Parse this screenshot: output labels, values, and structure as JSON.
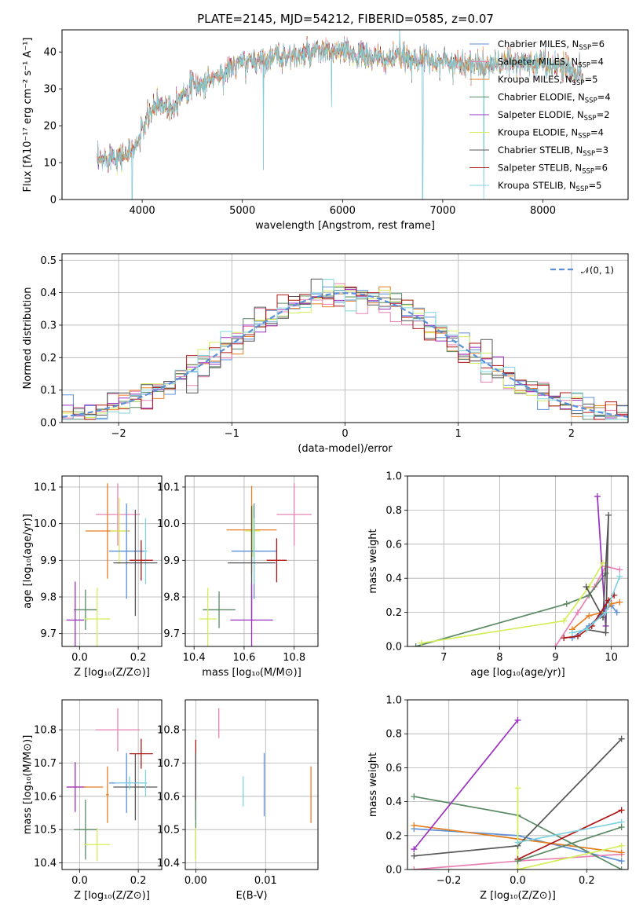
{
  "figure_title": "PLATE=2145, MJD=54212, FIBERID=0585, z=0.07",
  "colors": {
    "chabrier_miles": "#5b8fd8",
    "salpeter_miles": "#e882b4",
    "kroupa_miles": "#e67e22",
    "chabrier_elodie": "#5a8a64",
    "salpeter_elodie": "#9b30c0",
    "kroupa_elodie": "#d4ee5a",
    "chabrier_stelib": "#555555",
    "salpeter_stelib": "#b01515",
    "kroupa_stelib": "#7fd3de"
  },
  "chart_data": [
    {
      "id": "spectrum",
      "type": "line",
      "title": "PLATE=2145, MJD=54212, FIBERID=0585, z=0.07",
      "xlabel": "wavelength [Angstrom, rest frame]",
      "ylabel": "Flux [fλ10⁻¹⁷ erg cm⁻² s⁻¹ A⁻¹]",
      "xlim": [
        3200,
        8850
      ],
      "ylim": [
        0,
        46
      ],
      "xticks": [
        4000,
        5000,
        6000,
        7000,
        8000
      ],
      "yticks": [
        0,
        10,
        20,
        30,
        40
      ],
      "legend_position": "top-right",
      "legend": [
        {
          "label": "Chabrier MILES, N",
          "sub": "SSP",
          "n": "=6",
          "color": "#5b8fd8"
        },
        {
          "label": "Salpeter MILES, N",
          "sub": "SSP",
          "n": "=4",
          "color": "#e882b4"
        },
        {
          "label": "Kroupa MILES, N",
          "sub": "SSP",
          "n": "=5",
          "color": "#e67e22"
        },
        {
          "label": "Chabrier ELODIE, N",
          "sub": "SSP",
          "n": "=4",
          "color": "#5a8a64"
        },
        {
          "label": "Salpeter ELODIE, N",
          "sub": "SSP",
          "n": "=2",
          "color": "#9b30c0"
        },
        {
          "label": "Kroupa ELODIE, N",
          "sub": "SSP",
          "n": "=4",
          "color": "#d4ee5a"
        },
        {
          "label": "Chabrier STELIB, N",
          "sub": "SSP",
          "n": "=3",
          "color": "#555555"
        },
        {
          "label": "Salpeter STELIB, N",
          "sub": "SSP",
          "n": "=6",
          "color": "#b01515"
        },
        {
          "label": "Kroupa STELIB, N",
          "sub": "SSP",
          "n": "=5",
          "color": "#7fd3de"
        }
      ],
      "continuum": [
        [
          3550,
          10
        ],
        [
          3700,
          12
        ],
        [
          3850,
          12
        ],
        [
          3950,
          15
        ],
        [
          4050,
          22
        ],
        [
          4150,
          26
        ],
        [
          4300,
          25
        ],
        [
          4400,
          29
        ],
        [
          4500,
          31
        ],
        [
          4600,
          31
        ],
        [
          4700,
          33
        ],
        [
          4800,
          34
        ],
        [
          4900,
          36
        ],
        [
          5000,
          37
        ],
        [
          5200,
          38
        ],
        [
          5400,
          39
        ],
        [
          5600,
          39
        ],
        [
          5800,
          40
        ],
        [
          6000,
          40
        ],
        [
          6200,
          39
        ],
        [
          6400,
          38
        ],
        [
          6600,
          38.5
        ],
        [
          6800,
          38
        ],
        [
          7000,
          37.5
        ],
        [
          7200,
          37
        ],
        [
          7400,
          36
        ],
        [
          7600,
          37
        ],
        [
          7800,
          37
        ],
        [
          8000,
          37
        ],
        [
          8200,
          36
        ],
        [
          8400,
          34
        ]
      ],
      "spikes": [
        [
          3900,
          0
        ],
        [
          5210,
          8
        ],
        [
          5890,
          25
        ],
        [
          6570,
          46
        ],
        [
          6800,
          0
        ],
        [
          7410,
          0
        ]
      ]
    },
    {
      "id": "residual_hist",
      "type": "bar",
      "xlabel": "(data-model)/error",
      "ylabel": "Normed distribution",
      "xlim": [
        -2.5,
        2.5
      ],
      "ylim": [
        0,
        0.52
      ],
      "xticks": [
        -2,
        -1,
        0,
        1,
        2
      ],
      "yticks": [
        0.0,
        0.1,
        0.2,
        0.3,
        0.4,
        0.5
      ],
      "bin_width": 0.1,
      "legend_position": "top-right",
      "reference_curve": {
        "label": "𝒩(0, 1)",
        "mu": 0,
        "sigma": 1,
        "color": "#5b8fd8"
      }
    },
    {
      "id": "age_vs_Z",
      "type": "scatter",
      "xlabel": "Z [log₁₀(Z/Z⊙)]",
      "ylabel": "age  [log₁₀(age/yr)]",
      "xlim": [
        -0.06,
        0.28
      ],
      "ylim": [
        9.665,
        10.13
      ],
      "xticks": [
        0.0,
        0.2
      ],
      "yticks": [
        9.7,
        9.8,
        9.9,
        10.0,
        10.1
      ],
      "points": [
        {
          "x": 0.13,
          "y": 10.025,
          "xerr": 0.075,
          "yerr": 0.085,
          "color": "#e882b4"
        },
        {
          "x": 0.095,
          "y": 9.98,
          "xerr": 0.075,
          "yerr": 0.13,
          "color": "#e67e22"
        },
        {
          "x": 0.135,
          "y": 9.98,
          "xerr": 0.03,
          "yerr": 0.09,
          "color": "#d4ee5a"
        },
        {
          "x": 0.16,
          "y": 9.925,
          "xerr": 0.06,
          "yerr": 0.13,
          "color": "#5b8fd8"
        },
        {
          "x": 0.225,
          "y": 9.925,
          "xerr": 0.005,
          "yerr": 0.09,
          "color": "#7fd3de"
        },
        {
          "x": 0.21,
          "y": 9.9,
          "xerr": 0.04,
          "yerr": 0.055,
          "color": "#b01515"
        },
        {
          "x": 0.19,
          "y": 9.893,
          "xerr": 0.075,
          "yerr": 0.145,
          "color": "#555555"
        },
        {
          "x": 0.02,
          "y": 9.765,
          "xerr": 0.04,
          "yerr": 0.055,
          "color": "#5a8a64"
        },
        {
          "x": 0.06,
          "y": 9.74,
          "xerr": 0.045,
          "yerr": 0.085,
          "color": "#d4ee5a"
        },
        {
          "x": -0.015,
          "y": 9.737,
          "xerr": 0.03,
          "yerr": 0.105,
          "color": "#9b30c0"
        }
      ]
    },
    {
      "id": "age_vs_mass",
      "type": "scatter",
      "xlabel": "mass [log₁₀(M/M⊙)]",
      "xlim": [
        10.365,
        10.895
      ],
      "ylim": [
        9.665,
        10.13
      ],
      "xticks": [
        10.4,
        10.6,
        10.8
      ],
      "yticks": [
        9.7,
        9.8,
        9.9,
        10.0,
        10.1
      ],
      "points": [
        {
          "x": 10.8,
          "y": 10.025,
          "xerr": 0.07,
          "yerr": 0.085,
          "color": "#e882b4"
        },
        {
          "x": 10.63,
          "y": 9.983,
          "xerr": 0.1,
          "yerr": 0.12,
          "color": "#e67e22"
        },
        {
          "x": 10.635,
          "y": 9.98,
          "xerr": 0.03,
          "yerr": 0.07,
          "color": "#d4ee5a"
        },
        {
          "x": 10.64,
          "y": 9.925,
          "xerr": 0.09,
          "yerr": 0.13,
          "color": "#5b8fd8"
        },
        {
          "x": 10.64,
          "y": 9.925,
          "xerr": 0.003,
          "yerr": 0.09,
          "color": "#7fd3de"
        },
        {
          "x": 10.73,
          "y": 9.9,
          "xerr": 0.04,
          "yerr": 0.06,
          "color": "#b01515"
        },
        {
          "x": 10.63,
          "y": 9.893,
          "xerr": 0.095,
          "yerr": 0.155,
          "color": "#555555"
        },
        {
          "x": 10.5,
          "y": 9.765,
          "xerr": 0.065,
          "yerr": 0.05,
          "color": "#5a8a64"
        },
        {
          "x": 10.455,
          "y": 9.74,
          "xerr": 0.035,
          "yerr": 0.085,
          "color": "#d4ee5a"
        },
        {
          "x": 10.63,
          "y": 9.737,
          "xerr": 0.085,
          "yerr": 0.1,
          "color": "#9b30c0"
        }
      ]
    },
    {
      "id": "weight_vs_age",
      "type": "line",
      "xlabel": "age  [log₁₀(age/yr)]",
      "ylabel": "mass weight",
      "xlim": [
        6.35,
        10.3
      ],
      "ylim": [
        0,
        1
      ],
      "xticks": [
        7,
        8,
        9,
        10
      ],
      "yticks": [
        0.0,
        0.2,
        0.4,
        0.6,
        0.8,
        1.0
      ],
      "series": [
        {
          "color": "#5b8fd8",
          "x": [
            9.3,
            9.6,
            9.8,
            9.9,
            10.0,
            10.1
          ],
          "y": [
            0.05,
            0.12,
            0.18,
            0.22,
            0.24,
            0.2
          ]
        },
        {
          "color": "#e882b4",
          "x": [
            9.0,
            9.4,
            9.7,
            9.9,
            10.15
          ],
          "y": [
            0.0,
            0.2,
            0.35,
            0.47,
            0.45
          ]
        },
        {
          "color": "#e67e22",
          "x": [
            9.3,
            9.6,
            9.85,
            10.0,
            10.15
          ],
          "y": [
            0.1,
            0.18,
            0.2,
            0.25,
            0.26
          ]
        },
        {
          "color": "#5a8a64",
          "x": [
            6.5,
            9.2,
            9.6,
            9.9
          ],
          "y": [
            0.0,
            0.25,
            0.3,
            0.43
          ]
        },
        {
          "color": "#9b30c0",
          "x": [
            9.75,
            9.9
          ],
          "y": [
            0.88,
            0.12
          ]
        },
        {
          "color": "#d4ee5a",
          "x": [
            6.6,
            9.15,
            9.6,
            9.85
          ],
          "y": [
            0.02,
            0.15,
            0.35,
            0.49
          ]
        },
        {
          "color": "#555555",
          "x": [
            9.55,
            9.9,
            9.95,
            9.85,
            9.55
          ],
          "y": [
            0.1,
            0.08,
            0.77,
            0.17,
            0.35
          ]
        },
        {
          "color": "#b01515",
          "x": [
            9.15,
            9.4,
            9.65,
            9.95,
            10.05
          ],
          "y": [
            0.05,
            0.06,
            0.12,
            0.27,
            0.3
          ]
        },
        {
          "color": "#7fd3de",
          "x": [
            9.3,
            9.55,
            9.9,
            10.15
          ],
          "y": [
            0.08,
            0.1,
            0.2,
            0.41
          ]
        }
      ]
    },
    {
      "id": "mass_vs_Z",
      "type": "scatter",
      "xlabel": "Z [log₁₀(Z/Z⊙)]",
      "ylabel": "mass [log₁₀(M/M⊙)]",
      "xlim": [
        -0.06,
        0.28
      ],
      "ylim": [
        10.38,
        10.89
      ],
      "xticks": [
        0.0,
        0.2
      ],
      "yticks": [
        10.4,
        10.5,
        10.6,
        10.7,
        10.8
      ],
      "points": [
        {
          "x": 0.13,
          "y": 10.8,
          "xerr": 0.075,
          "yerr": 0.065,
          "color": "#e882b4"
        },
        {
          "x": 0.21,
          "y": 10.728,
          "xerr": 0.04,
          "yerr": 0.045,
          "color": "#b01515"
        },
        {
          "x": 0.16,
          "y": 10.64,
          "xerr": 0.06,
          "yerr": 0.09,
          "color": "#5b8fd8"
        },
        {
          "x": 0.19,
          "y": 10.628,
          "xerr": 0.075,
          "yerr": 0.1,
          "color": "#555555"
        },
        {
          "x": 0.17,
          "y": 10.64,
          "xerr": 0.05,
          "yerr": 0.02,
          "color": "#7fd3de"
        },
        {
          "x": 0.225,
          "y": 10.64,
          "xerr": 0.005,
          "yerr": 0.04,
          "color": "#7fd3de"
        },
        {
          "x": 0.095,
          "y": 10.605,
          "xerr": 0.005,
          "yerr": 0.085,
          "color": "#e67e22"
        },
        {
          "x": 0.02,
          "y": 10.628,
          "xerr": 0.06,
          "yerr": 0.002,
          "color": "#e67e22"
        },
        {
          "x": -0.015,
          "y": 10.628,
          "xerr": 0.03,
          "yerr": 0.075,
          "color": "#9b30c0"
        },
        {
          "x": 0.02,
          "y": 10.5,
          "xerr": 0.04,
          "yerr": 0.09,
          "color": "#5a8a64"
        },
        {
          "x": 0.06,
          "y": 10.455,
          "xerr": 0.045,
          "yerr": 0.05,
          "color": "#d4ee5a"
        }
      ]
    },
    {
      "id": "mass_vs_EBV",
      "type": "scatter",
      "xlabel": "E(B-V)",
      "xlim": [
        -0.0015,
        0.0175
      ],
      "ylim": [
        10.38,
        10.89
      ],
      "xticks": [
        0.0,
        0.01
      ],
      "yticks": [
        10.4,
        10.5,
        10.6,
        10.7,
        10.8
      ],
      "points": [
        {
          "x": 0.0033,
          "y": 10.82,
          "xerr": 0,
          "yerr": 0.045,
          "color": "#e882b4"
        },
        {
          "x": 0.0,
          "y": 10.65,
          "xerr": 0,
          "yerr": 0.12,
          "color": "#b01515"
        },
        {
          "x": 0.0,
          "y": 10.63,
          "xerr": 0,
          "yerr": 0.1,
          "color": "#555555"
        },
        {
          "x": 0.0,
          "y": 10.5,
          "xerr": 0,
          "yerr": 0.09,
          "color": "#5a8a64"
        },
        {
          "x": 0.0,
          "y": 10.455,
          "xerr": 0,
          "yerr": 0.05,
          "color": "#d4ee5a"
        },
        {
          "x": 0.0068,
          "y": 10.615,
          "xerr": 0,
          "yerr": 0.045,
          "color": "#7fd3de"
        },
        {
          "x": 0.0098,
          "y": 10.635,
          "xerr": 0,
          "yerr": 0.095,
          "color": "#5b8fd8"
        },
        {
          "x": 0.0165,
          "y": 10.605,
          "xerr": 0,
          "yerr": 0.085,
          "color": "#e67e22"
        }
      ]
    },
    {
      "id": "weight_vs_Z",
      "type": "line",
      "xlabel": "Z [log₁₀(Z/Z⊙)]",
      "ylabel": "mass weight",
      "xlim": [
        -0.32,
        0.32
      ],
      "ylim": [
        0,
        1
      ],
      "xticks": [
        -0.2,
        0.0,
        0.2
      ],
      "yticks": [
        0.0,
        0.2,
        0.4,
        0.6,
        0.8,
        1.0
      ],
      "series": [
        {
          "color": "#5b8fd8",
          "x": [
            -0.301,
            0.0,
            0.301
          ],
          "y": [
            0.24,
            0.2,
            0.05
          ]
        },
        {
          "color": "#e882b4",
          "x": [
            -0.301,
            0.0,
            0.301
          ],
          "y": [
            0.0,
            0.05,
            0.09
          ]
        },
        {
          "color": "#e67e22",
          "x": [
            -0.301,
            0.0,
            0.301
          ],
          "y": [
            0.26,
            0.18,
            0.1
          ]
        },
        {
          "color": "#5a8a64",
          "x": [
            -0.301,
            0.0,
            0.301
          ],
          "y": [
            0.43,
            0.32,
            0.0
          ]
        },
        {
          "color": "#9b30c0",
          "x": [
            -0.301,
            0.0
          ],
          "y": [
            0.12,
            0.88
          ]
        },
        {
          "color": "#d4ee5a",
          "x": [
            0.0,
            0.0,
            0.301
          ],
          "y": [
            0.48,
            0.0,
            0.14
          ]
        },
        {
          "color": "#555555",
          "x": [
            -0.301,
            0.0,
            0.301
          ],
          "y": [
            0.08,
            0.14,
            0.77
          ]
        },
        {
          "color": "#b01515",
          "x": [
            0.0,
            0.301
          ],
          "y": [
            0.06,
            0.35
          ]
        },
        {
          "color": "#7fd3de",
          "x": [
            0.0,
            0.301
          ],
          "y": [
            0.16,
            0.28
          ]
        },
        {
          "color": "#5a8a64",
          "x": [
            0.0,
            0.301
          ],
          "y": [
            0.05,
            0.25
          ]
        }
      ]
    }
  ]
}
